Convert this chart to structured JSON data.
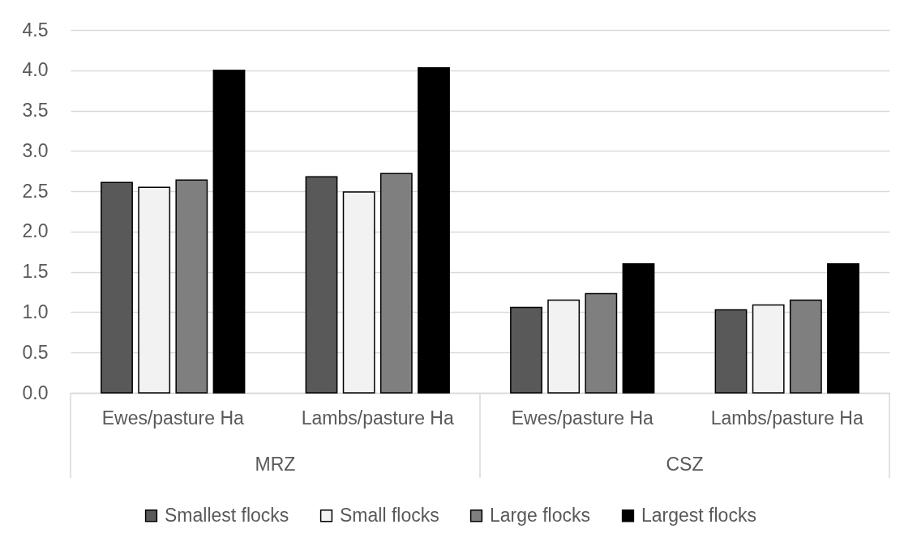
{
  "chart_data": {
    "type": "bar",
    "categories": [
      "Ewes/pasture Ha",
      "Lambs/pasture Ha",
      "Ewes/pasture Ha",
      "Lambs/pasture Ha"
    ],
    "series": [
      {
        "name": "Smallest flocks",
        "color": "#595959",
        "values": [
          2.61,
          2.68,
          1.06,
          1.03
        ]
      },
      {
        "name": "Small flocks",
        "color": "#f2f2f2",
        "values": [
          2.55,
          2.49,
          1.15,
          1.09
        ]
      },
      {
        "name": "Large flocks",
        "color": "#7f7f7f",
        "values": [
          2.64,
          2.72,
          1.23,
          1.15
        ]
      },
      {
        "name": "Largest flocks",
        "color": "#000000",
        "values": [
          4.0,
          4.03,
          1.6,
          1.6
        ]
      }
    ],
    "ylim": [
      0,
      4.5
    ],
    "yticks": [
      {
        "value": 0,
        "label": "0.0"
      },
      0.5,
      {
        "value": 1,
        "label": "1.0"
      },
      1.5,
      {
        "value": 2,
        "label": "2.0"
      },
      2.5,
      {
        "value": 3,
        "label": "3.0"
      },
      3.5,
      {
        "value": 4,
        "label": "4.0"
      },
      4.5
    ],
    "grid": "y",
    "legend": "bottom",
    "annotations": [
      "MRZ",
      "CSZ"
    ]
  }
}
